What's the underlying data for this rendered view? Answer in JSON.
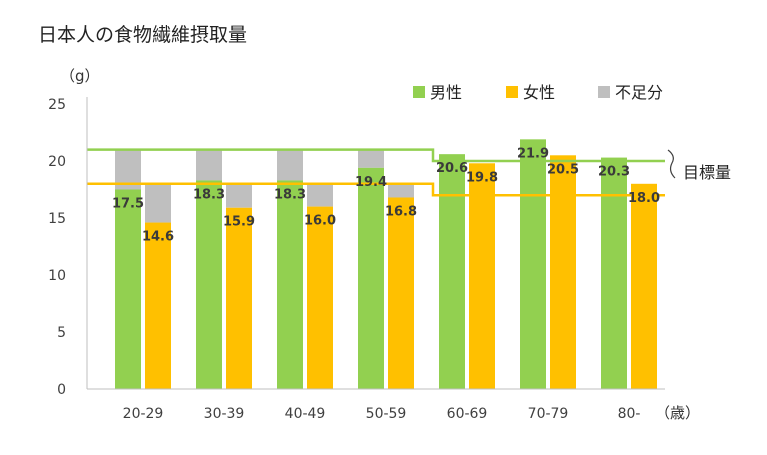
{
  "chart_data": {
    "type": "bar",
    "title": "日本人の食物繊維摂取量",
    "ylabel": "（g）",
    "xlabel": "（歳）",
    "ylim": [
      0,
      25
    ],
    "yticks": [
      0,
      5,
      10,
      15,
      20,
      25
    ],
    "categories": [
      "20-29",
      "30-39",
      "40-49",
      "50-59",
      "60-69",
      "70-79",
      "80-"
    ],
    "series": [
      {
        "name": "男性",
        "color": "#92D050",
        "values": [
          17.5,
          18.3,
          18.3,
          19.4,
          20.6,
          21.9,
          20.3
        ]
      },
      {
        "name": "女性",
        "color": "#FFC000",
        "values": [
          14.6,
          15.9,
          16.0,
          16.8,
          19.8,
          20.5,
          18.0
        ]
      },
      {
        "name": "不足分",
        "color": "#BFBFBF",
        "male_values": [
          3.5,
          2.7,
          2.7,
          1.6,
          0,
          0,
          0
        ],
        "female_values": [
          3.4,
          2.1,
          2.0,
          1.2,
          0,
          0,
          0
        ]
      }
    ],
    "value_labels_male": [
      "17.5",
      "18.3",
      "18.3",
      "19.4",
      "20.6",
      "21.9",
      "20.3"
    ],
    "value_labels_female": [
      "14.6",
      "15.9",
      "16.0",
      "16.8",
      "19.8",
      "20.5",
      "18.0"
    ],
    "target_lines": {
      "label": "目標量",
      "male": [
        21,
        21,
        21,
        21,
        20,
        20,
        20
      ],
      "female": [
        18,
        18,
        18,
        18,
        17,
        17,
        17
      ],
      "male_color": "#92D050",
      "female_color": "#FFC000"
    },
    "legend_position": "top-right",
    "grid": false
  }
}
